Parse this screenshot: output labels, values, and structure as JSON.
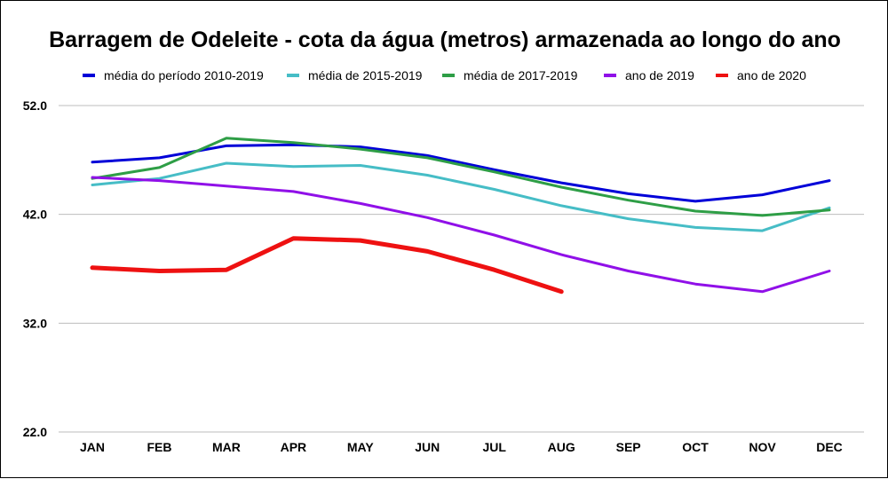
{
  "chart_data": {
    "type": "line",
    "title": "Barragem de Odeleite - cota da água (metros) armazenada ao longo do ano",
    "categories": [
      "JAN",
      "FEB",
      "MAR",
      "APR",
      "MAY",
      "JUN",
      "JUL",
      "AUG",
      "SEP",
      "OCT",
      "NOV",
      "DEC"
    ],
    "y_ticks": [
      "22.0",
      "32.0",
      "42.0",
      "52.0"
    ],
    "ylim": [
      22,
      52
    ],
    "grid": true,
    "legend_position": "top",
    "series": [
      {
        "name": "média do período 2010-2019",
        "color": "#0000d8",
        "width": 3,
        "values": [
          46.8,
          47.2,
          48.3,
          48.4,
          48.2,
          47.4,
          46.1,
          44.9,
          43.9,
          43.2,
          43.8,
          45.1
        ]
      },
      {
        "name": "média de 2015-2019",
        "color": "#46bdc6",
        "width": 3,
        "values": [
          44.7,
          45.3,
          46.7,
          46.4,
          46.5,
          45.6,
          44.3,
          42.8,
          41.6,
          40.8,
          40.5,
          42.6
        ]
      },
      {
        "name": "média de 2017-2019",
        "color": "#2e9e46",
        "width": 3,
        "values": [
          45.3,
          46.3,
          49.0,
          48.6,
          48.0,
          47.2,
          45.9,
          44.5,
          43.3,
          42.3,
          41.9,
          42.4
        ]
      },
      {
        "name": "ano de 2019",
        "color": "#9010e8",
        "width": 3,
        "values": [
          45.4,
          45.1,
          44.6,
          44.1,
          43.0,
          41.7,
          40.1,
          38.3,
          36.8,
          35.6,
          34.9,
          36.8
        ]
      },
      {
        "name": "ano de 2020",
        "color": "#ee1111",
        "width": 5,
        "values": [
          37.1,
          36.8,
          36.9,
          39.8,
          39.6,
          38.6,
          36.9,
          34.9,
          null,
          null,
          null,
          null
        ]
      }
    ]
  }
}
